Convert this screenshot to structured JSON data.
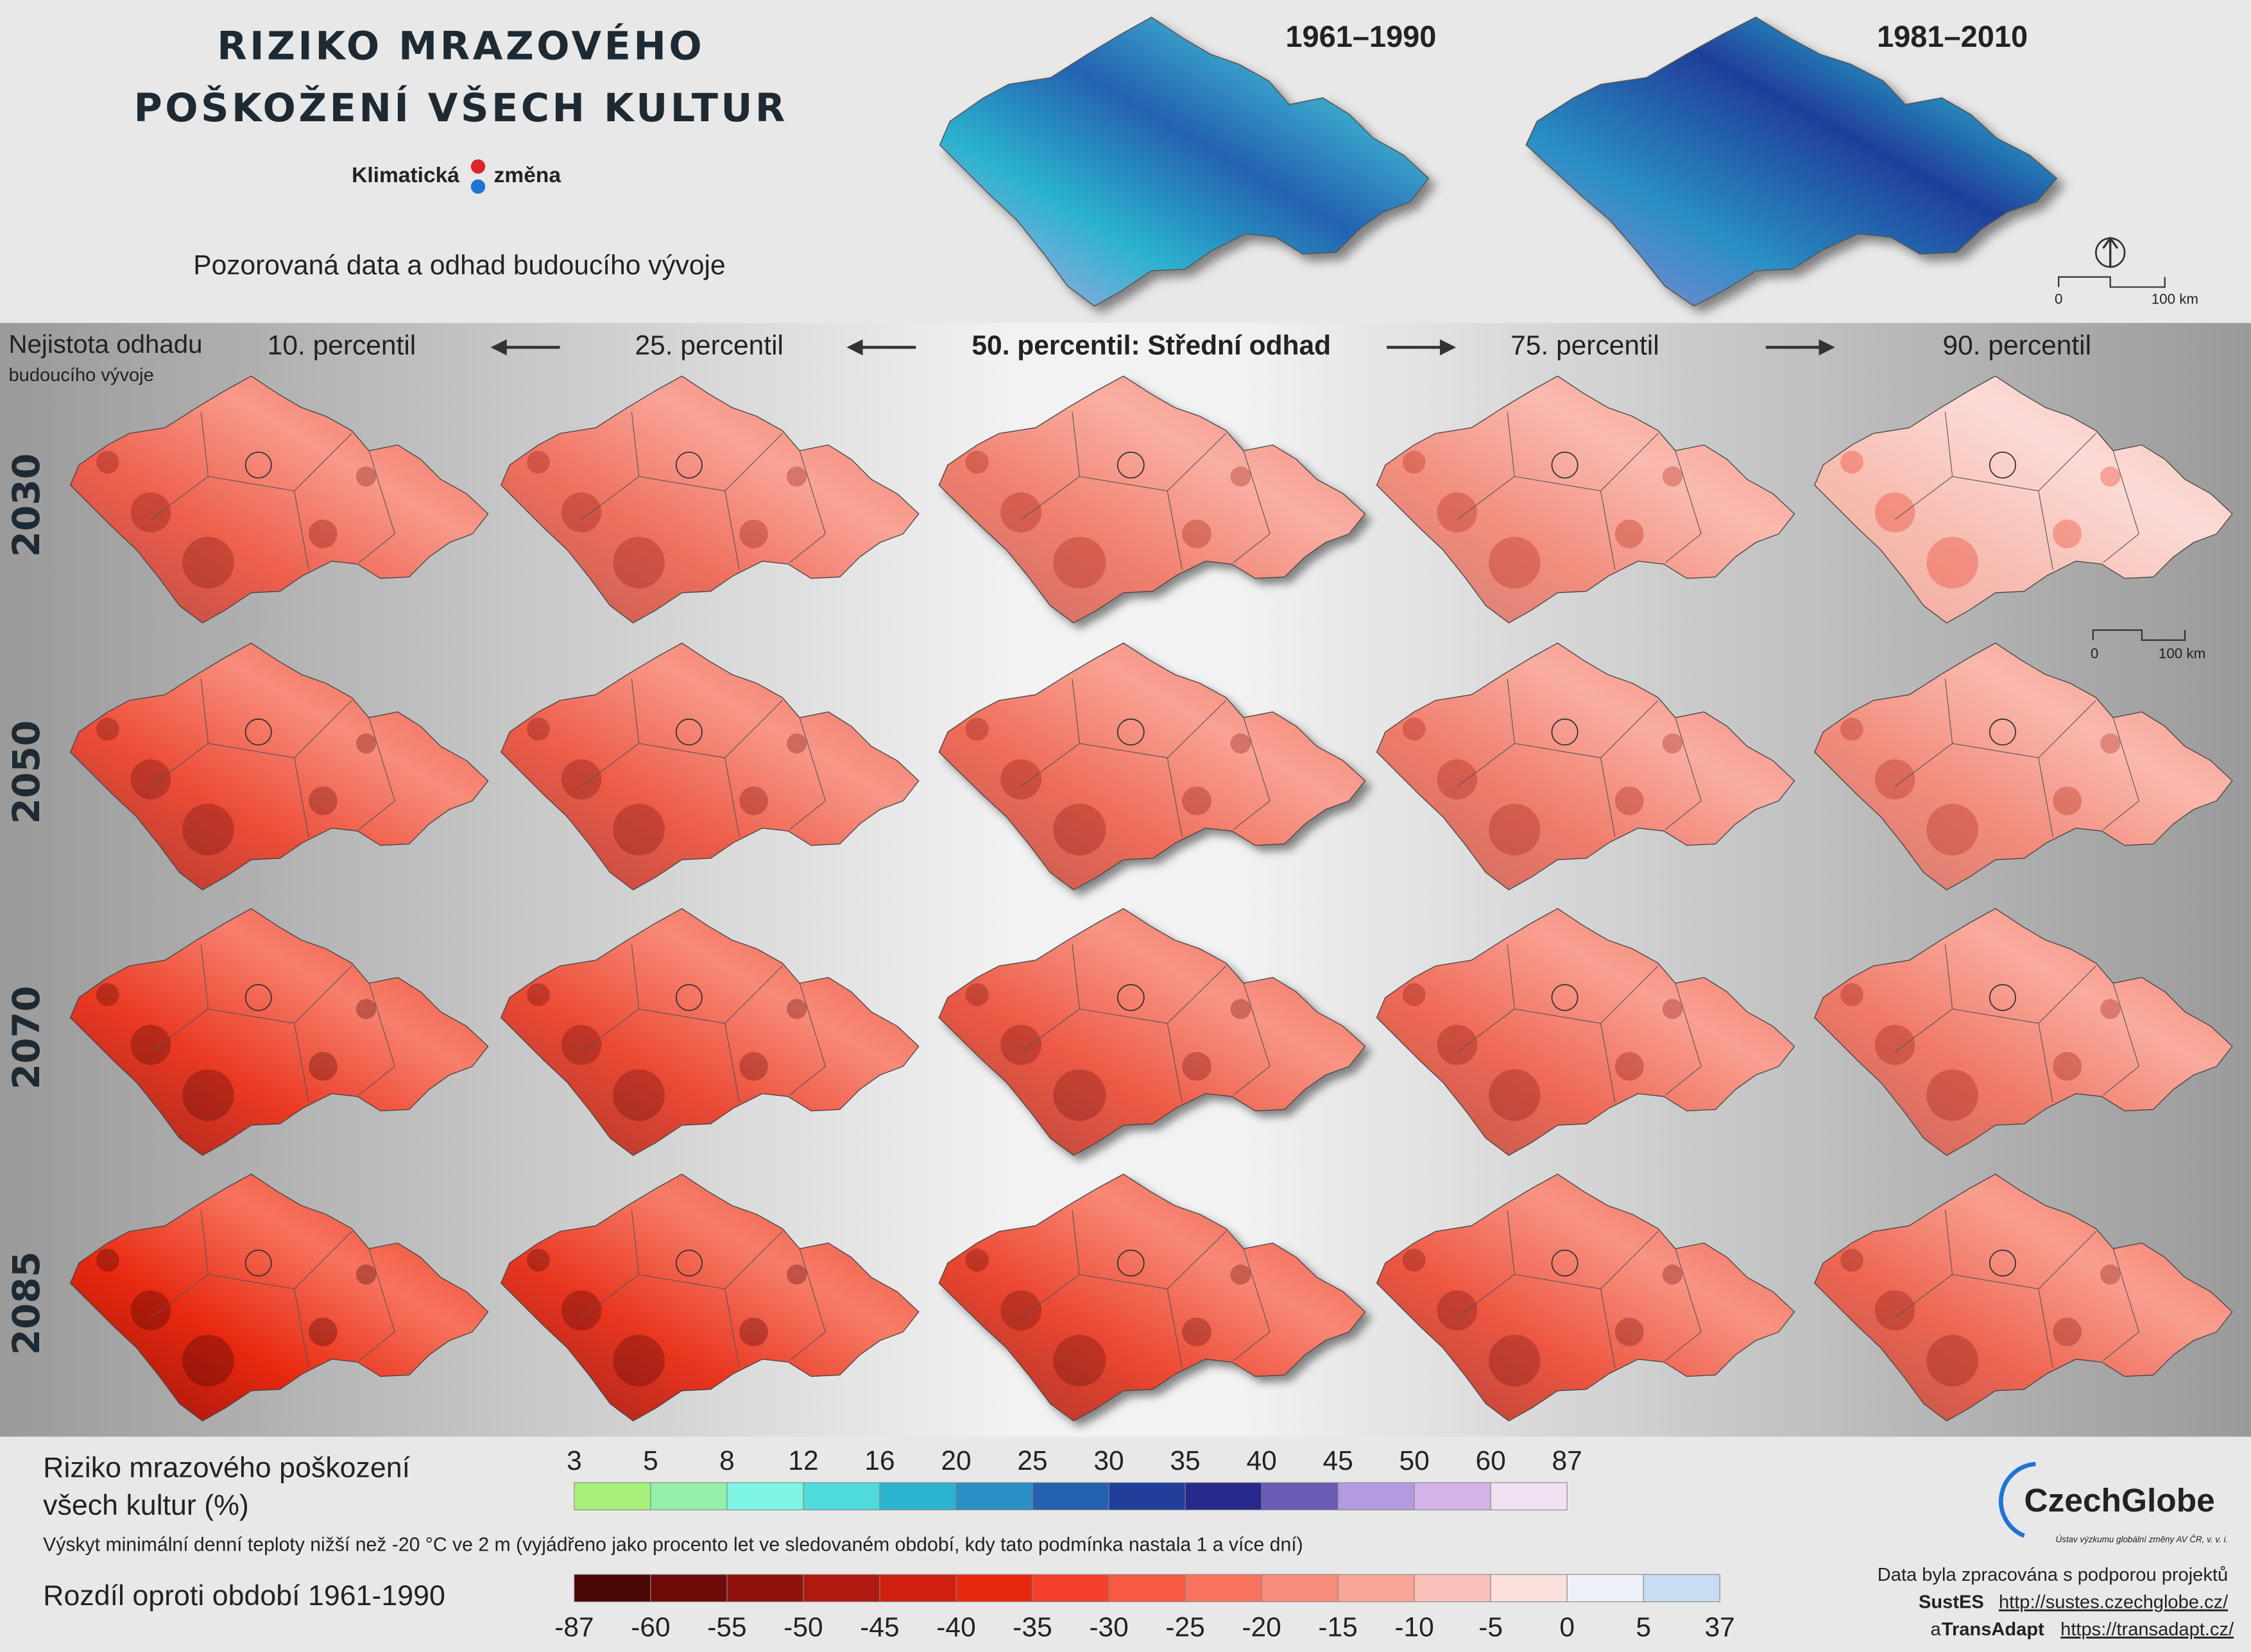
{
  "header": {
    "title_line1": "RIZIKO MRAZOVÉHO",
    "title_line2": "POŠKOŽENÍ VŠECH KULTUR",
    "logo_text_1": "Klimatická",
    "logo_text_2": "změna",
    "subtitle": "Pozorovaná data a odhad budoucího vývoje"
  },
  "observed": {
    "periods": [
      "1961–1990",
      "1981–2010"
    ],
    "scale_start": "0",
    "scale_end": "100 km"
  },
  "uncertainty": {
    "label_line1": "Nejistota odhadu",
    "label_line2": "budoucího vývoje"
  },
  "percentiles": [
    "10. percentil",
    "25. percentil",
    "50. percentil: Střední odhad",
    "75. percentil",
    "90. percentil"
  ],
  "years": [
    "2030",
    "2050",
    "2070",
    "2085"
  ],
  "forecast_scale": {
    "start": "0",
    "end": "100 km"
  },
  "legend_risk": {
    "title_line1": "Riziko mrazového poškození",
    "title_line2": "všech kultur (%)",
    "ticks": [
      3,
      5,
      8,
      12,
      16,
      20,
      25,
      30,
      35,
      40,
      45,
      50,
      60,
      87
    ],
    "colors": [
      "#a6f07a",
      "#92f0a8",
      "#7ef5e2",
      "#4fdadc",
      "#2bb3cf",
      "#2a8fc4",
      "#2462b0",
      "#1f3f9a",
      "#262a8a",
      "#6b5bb5",
      "#b39be0",
      "#d4b4e8",
      "#f2e0f3"
    ],
    "note": "Výskyt minimální denní teploty nižší než -20 °C ve 2 m (vyjádřeno jako procento let ve sledovaném období, kdy tato podmínka nastala 1 a více dní)"
  },
  "legend_diff": {
    "title": "Rozdíl oproti období 1961-1990",
    "ticks": [
      -87,
      -60,
      -55,
      -50,
      -45,
      -40,
      -35,
      -30,
      -25,
      -20,
      -15,
      -10,
      -5,
      0,
      5,
      37
    ],
    "colors": [
      "#4a0505",
      "#6e0a08",
      "#8f120c",
      "#b01a10",
      "#d01f10",
      "#e8280f",
      "#f4402a",
      "#f65a43",
      "#f7735e",
      "#f78c7a",
      "#f8a597",
      "#f9c1b8",
      "#fbe0dc",
      "#eef0fa",
      "#c8dcf4"
    ]
  },
  "footer": {
    "logo": "CzechGlobe",
    "logo_sub": "Ústav výzkumu globální změny AV ČR, v. v. i.",
    "credit": "Data byla zpracována s podporou projektů",
    "project1": "SustES",
    "link1": "http://sustes.czechglobe.cz/",
    "and": "a",
    "project2": "TransAdapt",
    "link2": "https://transadapt.cz/"
  }
}
